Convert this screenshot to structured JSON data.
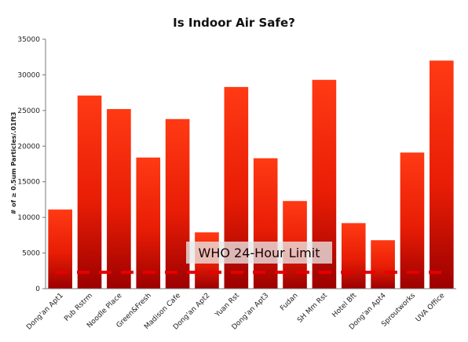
{
  "chart_data": {
    "type": "bar",
    "title": "Is Indoor Air Safe?",
    "ylabel": "# of ≥ 0.5um Particles/.01ft3",
    "xlabel": "",
    "ylim": [
      0,
      35000
    ],
    "yticks": [
      0,
      5000,
      10000,
      15000,
      20000,
      25000,
      30000,
      35000
    ],
    "categories": [
      "Dong'an Apt1",
      "Pub Rstrm",
      "Noodle Place",
      "Green&Fresh",
      "Madison Cafe",
      "Dong'an Apt2",
      "Yuan Rst",
      "Dong'an Apt3",
      "Fudan",
      "SH Mm Rst",
      "Hotel Bft",
      "Dong'an Apt4",
      "Sproutworks",
      "UVA Office"
    ],
    "values": [
      11100,
      27100,
      25200,
      18400,
      23800,
      7900,
      28300,
      18300,
      12300,
      29300,
      9200,
      6800,
      19100,
      32000
    ],
    "reference_line": {
      "label": "WHO 24-Hour Limit",
      "value": 2300,
      "color": "#e60000",
      "style": "dashed"
    },
    "grid": false,
    "legend": "none",
    "colors": {
      "bar_top": "#ff3311",
      "bar_bottom": "#a00000",
      "axis": "#777777"
    }
  }
}
